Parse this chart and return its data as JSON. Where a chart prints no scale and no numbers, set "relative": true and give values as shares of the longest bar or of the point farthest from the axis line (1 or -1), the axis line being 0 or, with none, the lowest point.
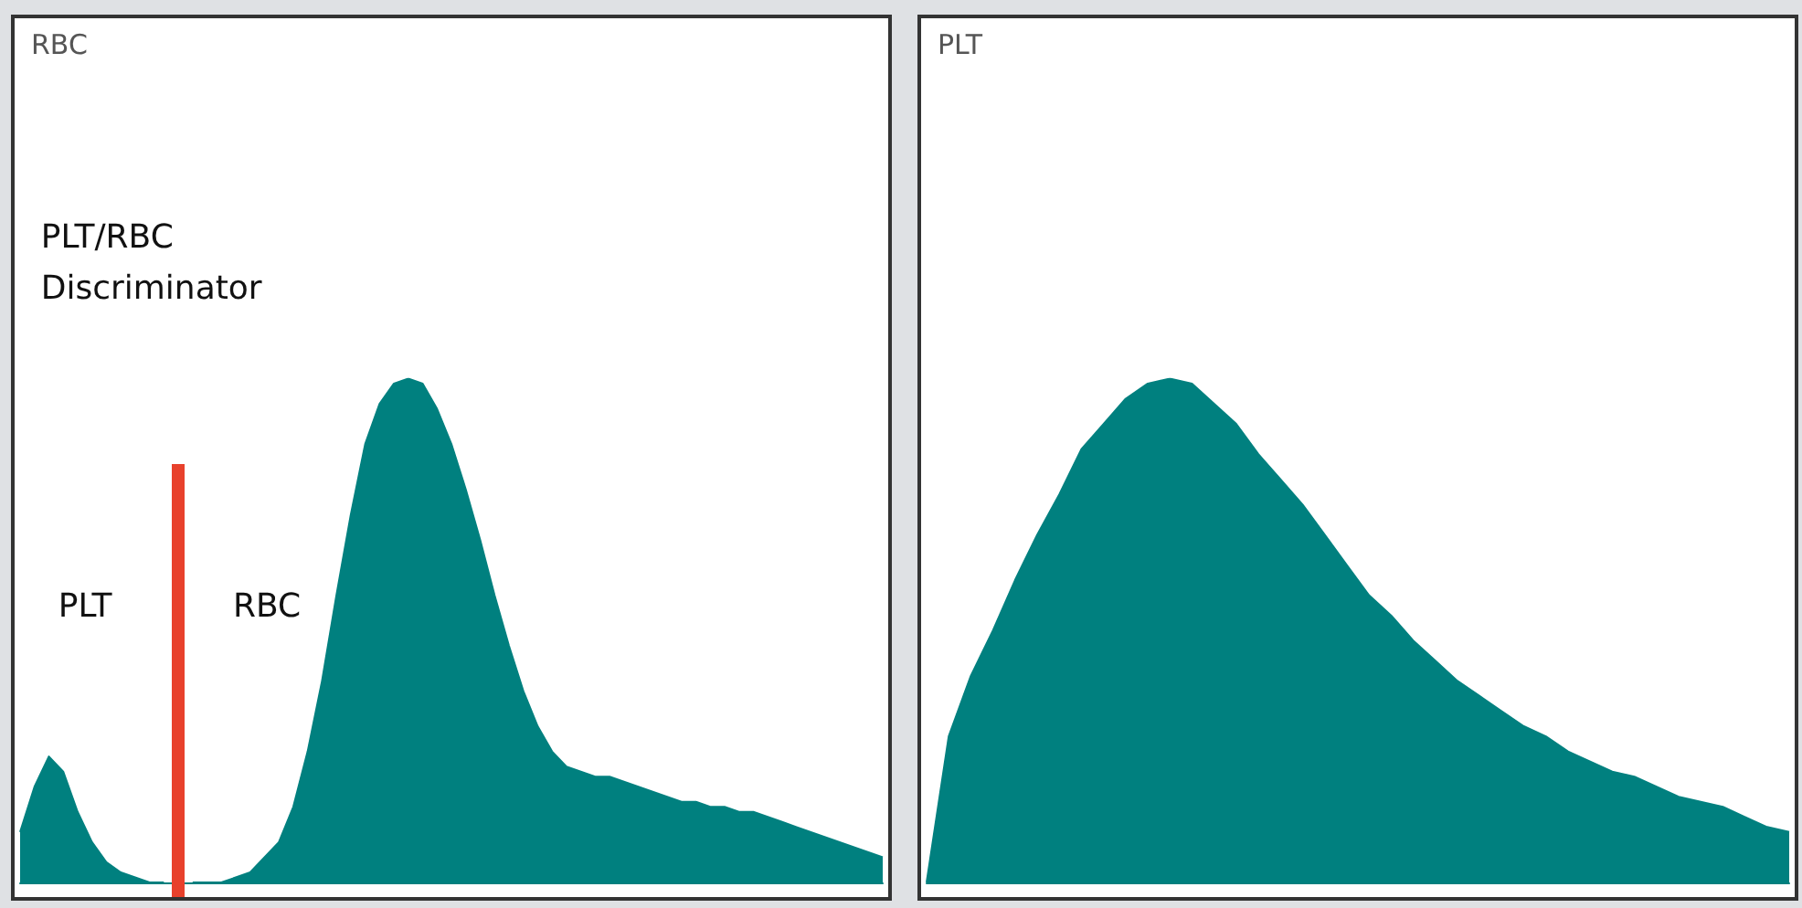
{
  "chart_data": [
    {
      "type": "area",
      "title": "RBC",
      "relative": true,
      "color": "#00807f",
      "categories": [
        null,
        null,
        null,
        null,
        null,
        null,
        null,
        null,
        null,
        null,
        null,
        null,
        null,
        null,
        null,
        null,
        null,
        null,
        null,
        null,
        null,
        null,
        null,
        null,
        null,
        null,
        null,
        null,
        null,
        null,
        null,
        null,
        null,
        null,
        null,
        null,
        null,
        null,
        null,
        null,
        null,
        null,
        null,
        null,
        null,
        null,
        null,
        null,
        null,
        null,
        null,
        null,
        null,
        null,
        null,
        null,
        null,
        null,
        null,
        null,
        null
      ],
      "values": [
        0.1,
        0.19,
        0.25,
        0.22,
        0.14,
        0.08,
        0.04,
        0.02,
        0.01,
        0,
        0,
        null,
        0,
        0,
        0,
        0.01,
        0.02,
        0.05,
        0.08,
        0.15,
        0.26,
        0.4,
        0.57,
        0.73,
        0.87,
        0.95,
        0.99,
        1.0,
        0.99,
        0.94,
        0.87,
        0.78,
        0.68,
        0.57,
        0.47,
        0.38,
        0.31,
        0.26,
        0.23,
        0.22,
        0.21,
        0.21,
        0.2,
        0.19,
        0.18,
        0.17,
        0.16,
        0.16,
        0.15,
        0.15,
        0.14,
        0.14,
        0.13,
        0.12,
        0.11,
        0.1,
        0.09,
        0.08,
        0.07,
        0.06,
        0.05
      ],
      "annotations": [
        "PLT/RBC Discriminator",
        "PLT",
        "RBC"
      ]
    },
    {
      "type": "area",
      "title": "PLT",
      "relative": true,
      "color": "#00807f",
      "categories": [
        null,
        null,
        null,
        null,
        null,
        null,
        null,
        null,
        null,
        null,
        null,
        null,
        null,
        null,
        null,
        null,
        null,
        null,
        null,
        null,
        null,
        null,
        null,
        null,
        null,
        null,
        null,
        null,
        null,
        null,
        null,
        null,
        null,
        null,
        null,
        null,
        null,
        null,
        null,
        null
      ],
      "values": [
        0,
        0.29,
        0.41,
        0.5,
        0.6,
        0.69,
        0.77,
        0.86,
        0.91,
        0.96,
        0.99,
        1.0,
        0.99,
        0.95,
        0.91,
        0.85,
        0.8,
        0.75,
        0.69,
        0.63,
        0.57,
        0.53,
        0.48,
        0.44,
        0.4,
        0.37,
        0.34,
        0.31,
        0.29,
        0.26,
        0.24,
        0.22,
        0.21,
        0.19,
        0.17,
        0.16,
        0.15,
        0.13,
        0.11,
        0.1
      ]
    }
  ]
}
